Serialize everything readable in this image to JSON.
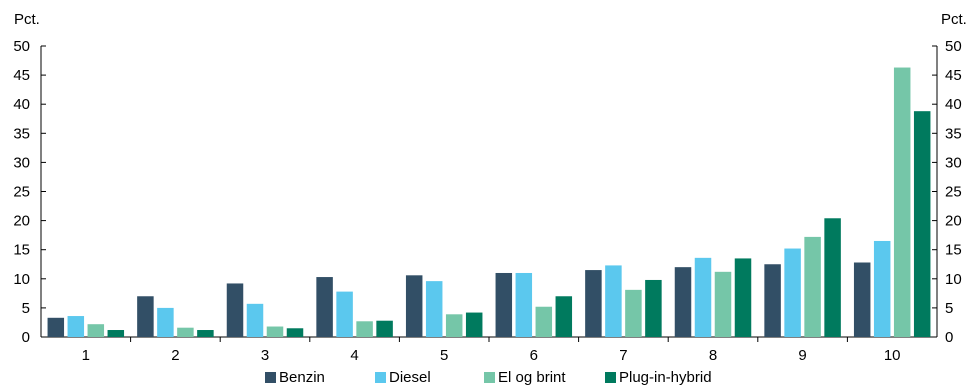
{
  "chart_data": {
    "type": "bar",
    "title": "",
    "xlabel": "",
    "ylabel_left": "Pct.",
    "ylabel_right": "Pct.",
    "ylim": [
      0,
      50
    ],
    "yticks": [
      0,
      5,
      10,
      15,
      20,
      25,
      30,
      35,
      40,
      45,
      50
    ],
    "grid": false,
    "legend_position": "bottom",
    "categories": [
      "1",
      "2",
      "3",
      "4",
      "5",
      "6",
      "7",
      "8",
      "9",
      "10"
    ],
    "series": [
      {
        "name": "Benzin",
        "color": "#324f66",
        "values": [
          3.3,
          7.0,
          9.2,
          10.3,
          10.6,
          11.0,
          11.5,
          12.0,
          12.5,
          12.8
        ]
      },
      {
        "name": "Diesel",
        "color": "#5bc8ee",
        "values": [
          3.6,
          5.0,
          5.7,
          7.8,
          9.6,
          11.0,
          12.3,
          13.6,
          15.2,
          16.5
        ]
      },
      {
        "name": "El og brint",
        "color": "#75c6a8",
        "values": [
          2.2,
          1.6,
          1.8,
          2.7,
          3.9,
          5.2,
          8.1,
          11.2,
          17.2,
          46.3
        ]
      },
      {
        "name": "Plug-in-hybrid",
        "color": "#007a5e",
        "values": [
          1.2,
          1.2,
          1.5,
          2.8,
          4.2,
          7.0,
          9.8,
          13.5,
          20.4,
          38.8
        ]
      }
    ]
  }
}
